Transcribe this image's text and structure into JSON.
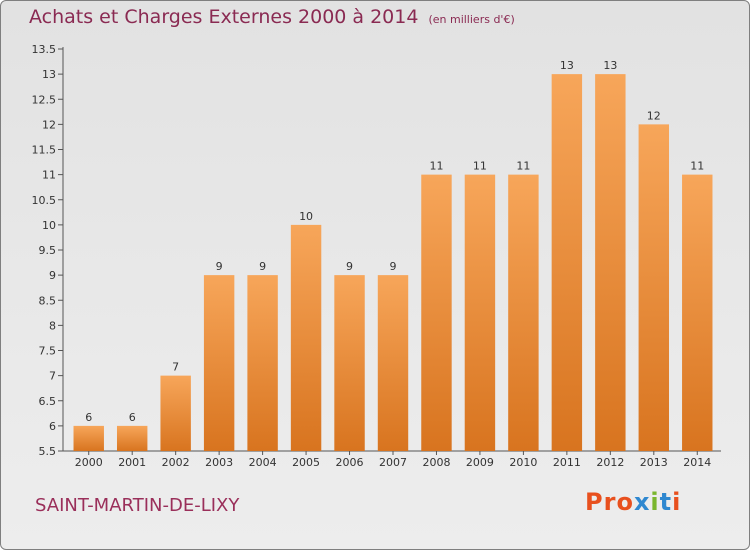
{
  "header": {
    "title": "Achats et Charges Externes 2000 à 2014",
    "subtitle": "(en milliers d'€)"
  },
  "footer": {
    "commune": "SAINT-MARTIN-DE-LIXY",
    "brand": "Proxiti"
  },
  "colors": {
    "title": "#8a2a52",
    "bar_top": "#f7a65a",
    "bar_bottom": "#d8741f",
    "brand_letters": [
      "#e8501e",
      "#e8501e",
      "#e8501e",
      "#2f88d0",
      "#7ab62e",
      "#2f88d0",
      "#e8501e"
    ]
  },
  "chart_data": {
    "type": "bar",
    "title": "Achats et Charges Externes 2000 à 2014",
    "subtitle": "(en milliers d'€)",
    "xlabel": "",
    "ylabel": "",
    "categories": [
      "2000",
      "2001",
      "2002",
      "2003",
      "2004",
      "2005",
      "2006",
      "2007",
      "2008",
      "2009",
      "2010",
      "2011",
      "2012",
      "2013",
      "2014"
    ],
    "values": [
      6,
      6,
      7,
      9,
      9,
      10,
      9,
      9,
      11,
      11,
      11,
      13,
      13,
      12,
      11
    ],
    "labels": [
      "6",
      "6",
      "7",
      "9",
      "9",
      "10",
      "9",
      "9",
      "11",
      "11",
      "11",
      "13",
      "13",
      "12",
      "11"
    ],
    "ylim": [
      5.5,
      13.5
    ],
    "yticks": [
      "5.5",
      "6",
      "6.5",
      "7",
      "7.5",
      "8",
      "8.5",
      "9",
      "9.5",
      "10",
      "10.5",
      "11",
      "11.5",
      "12",
      "12.5",
      "13",
      "13.5"
    ],
    "grid": false,
    "legend": "none"
  }
}
